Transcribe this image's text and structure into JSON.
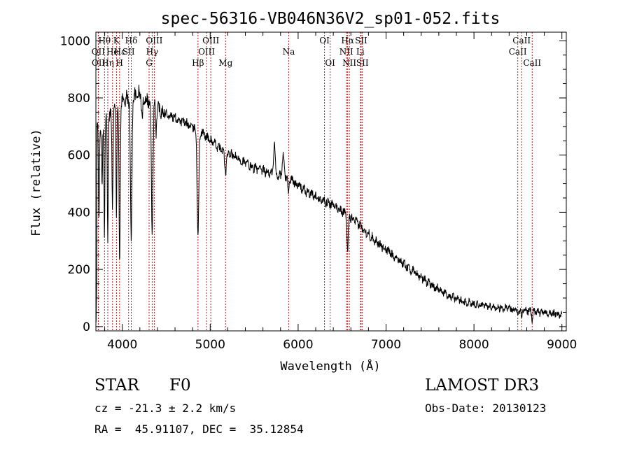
{
  "chart_data": {
    "type": "line",
    "title": "spec-56316-VB046N36V2_sp01-052.fits",
    "xlabel": "Wavelength (Å)",
    "ylabel": "Flux (relative)",
    "xlim": [
      3700,
      9050
    ],
    "ylim": [
      -15,
      1030
    ],
    "xticks": [
      4000,
      5000,
      6000,
      7000,
      8000,
      9000
    ],
    "yticks": [
      0,
      200,
      400,
      600,
      800,
      1000
    ],
    "continuum": [
      [
        3700,
        700
      ],
      [
        3850,
        730
      ],
      [
        4000,
        790
      ],
      [
        4100,
        800
      ],
      [
        4200,
        815
      ],
      [
        4300,
        790
      ],
      [
        4500,
        745
      ],
      [
        4700,
        715
      ],
      [
        4900,
        680
      ],
      [
        5100,
        625
      ],
      [
        5300,
        590
      ],
      [
        5500,
        555
      ],
      [
        5700,
        535
      ],
      [
        5900,
        520
      ],
      [
        6100,
        470
      ],
      [
        6300,
        440
      ],
      [
        6500,
        405
      ],
      [
        6700,
        355
      ],
      [
        6900,
        295
      ],
      [
        7100,
        245
      ],
      [
        7300,
        195
      ],
      [
        7500,
        150
      ],
      [
        7700,
        110
      ],
      [
        7900,
        85
      ],
      [
        8100,
        75
      ],
      [
        8300,
        65
      ],
      [
        8500,
        60
      ],
      [
        8700,
        52
      ],
      [
        8900,
        45
      ],
      [
        9000,
        42
      ]
    ],
    "absorption": [
      [
        3735,
        330,
        8
      ],
      [
        3770,
        240,
        8
      ],
      [
        3797,
        380,
        7
      ],
      [
        3835,
        430,
        7
      ],
      [
        3889,
        320,
        8
      ],
      [
        3934,
        400,
        6
      ],
      [
        3970,
        570,
        9
      ],
      [
        4101,
        500,
        12
      ],
      [
        4227,
        90,
        10
      ],
      [
        4340,
        460,
        12
      ],
      [
        4383,
        90,
        8
      ],
      [
        4861,
        360,
        14
      ],
      [
        5175,
        70,
        15
      ],
      [
        5890,
        50,
        10
      ],
      [
        6563,
        140,
        10
      ],
      [
        8498,
        25,
        6
      ],
      [
        8542,
        35,
        7
      ],
      [
        8662,
        30,
        7
      ]
    ],
    "emission": [
      [
        5730,
        110,
        12
      ],
      [
        5830,
        70,
        15
      ]
    ],
    "spectral_lines": [
      {
        "label": "Hθ",
        "wavelength": 3798,
        "row": 0
      },
      {
        "label": "OII",
        "wavelength": 3727,
        "row": 1
      },
      {
        "label": "OII",
        "wavelength": 3729,
        "row": 2
      },
      {
        "label": "Hη",
        "wavelength": 3835,
        "row": 2
      },
      {
        "label": "He",
        "wavelength": 3889,
        "row": 1
      },
      {
        "label": "K",
        "wavelength": 3934,
        "row": 0
      },
      {
        "label": "H",
        "wavelength": 3969,
        "row": 2
      },
      {
        "label": "Hε",
        "wavelength": 3970,
        "row": 1
      },
      {
        "label": "Hδ",
        "wavelength": 4102,
        "row": 0
      },
      {
        "label": "SII",
        "wavelength": 4072,
        "row": 1
      },
      {
        "label": "OIII",
        "wavelength": 4364,
        "row": 0
      },
      {
        "label": "Hγ",
        "wavelength": 4340,
        "row": 1
      },
      {
        "label": "G",
        "wavelength": 4305,
        "row": 2
      },
      {
        "label": "Hβ",
        "wavelength": 4861,
        "row": 2
      },
      {
        "label": "OIII",
        "wavelength": 5007,
        "row": 0
      },
      {
        "label": "OIII",
        "wavelength": 4959,
        "row": 1
      },
      {
        "label": "Mg",
        "wavelength": 5175,
        "row": 2
      },
      {
        "label": "Na",
        "wavelength": 5893,
        "row": 1
      },
      {
        "label": "OI",
        "wavelength": 6300,
        "row": 0
      },
      {
        "label": "OI",
        "wavelength": 6364,
        "row": 2
      },
      {
        "label": "Hα",
        "wavelength": 6563,
        "row": 0
      },
      {
        "label": "NII",
        "wavelength": 6548,
        "row": 1
      },
      {
        "label": "NII",
        "wavelength": 6583,
        "row": 2
      },
      {
        "label": "SII",
        "wavelength": 6717,
        "row": 0
      },
      {
        "label": "Li",
        "wavelength": 6708,
        "row": 1
      },
      {
        "label": "SII",
        "wavelength": 6731,
        "row": 2
      },
      {
        "label": "CaII",
        "wavelength": 8542,
        "row": 0
      },
      {
        "label": "CaII",
        "wavelength": 8498,
        "row": 1
      },
      {
        "label": "CaII",
        "wavelength": 8662,
        "row": 2
      }
    ],
    "line_color": "#b22222"
  },
  "info": {
    "class_label": "STAR",
    "subclass": "F0",
    "survey": "LAMOST DR3",
    "redshift": "cz = -21.3 ± 2.2 km/s",
    "obs_date": "Obs-Date: 20130123",
    "coords": "RA =  45.91107, DEC =  35.12854"
  }
}
